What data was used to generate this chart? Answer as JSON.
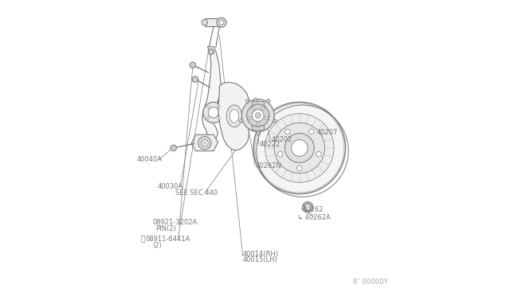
{
  "bg_color": "#ffffff",
  "lc": "#777777",
  "tc": "#777777",
  "dc": "#aaaaaa",
  "fw": 6.4,
  "fh": 3.72,
  "dpi": 100,
  "labels": {
    "N_label": [
      "N 08911-6441A",
      0.125,
      0.81
    ],
    "N_sub": [
      "(2)",
      0.155,
      0.77
    ],
    "pin_label": [
      "08921-3202A",
      0.155,
      0.725
    ],
    "pin_sub": [
      "PIN(2)",
      0.165,
      0.692
    ],
    "l40030A": [
      "40030A",
      0.17,
      0.628
    ],
    "l40014": [
      "40014(RH)",
      0.46,
      0.858
    ],
    "l40015": [
      "40015(LH)",
      0.46,
      0.833
    ],
    "l40262N": [
      "40262N",
      0.535,
      0.562
    ],
    "l40222": [
      "40222",
      0.552,
      0.49
    ],
    "l40202": [
      "40202",
      0.59,
      0.472
    ],
    "l40207": [
      "40207",
      0.71,
      0.45
    ],
    "l40040A": [
      "40040A",
      0.1,
      0.538
    ],
    "lSECSEC": [
      "SEE SEC.440",
      0.23,
      0.648
    ],
    "l40262": [
      "40262",
      0.66,
      0.71
    ],
    "l40262A": [
      "40262A",
      0.65,
      0.74
    ],
    "lcode": [
      "R' 00000Y",
      0.83,
      0.95
    ]
  }
}
